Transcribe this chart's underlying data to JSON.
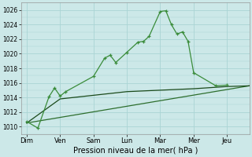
{
  "title": "",
  "xlabel": "Pression niveau de la mer( hPa )",
  "background_color": "#cce8e8",
  "grid_color": "#aad4d4",
  "ylim": [
    1009,
    1027
  ],
  "yticks": [
    1010,
    1012,
    1014,
    1016,
    1018,
    1020,
    1022,
    1024,
    1026
  ],
  "x_labels": [
    "Dim",
    "Ven",
    "Sam",
    "Lun",
    "Mar",
    "Mer",
    "Jeu"
  ],
  "x_positions": [
    0,
    24,
    48,
    72,
    96,
    120,
    144
  ],
  "xlim": [
    -4,
    160
  ],
  "series1_x": [
    0,
    8,
    16,
    20,
    24,
    28,
    48,
    56,
    60,
    64,
    72,
    80,
    84,
    88,
    96,
    100,
    104,
    108,
    112,
    116,
    120,
    136,
    144
  ],
  "series1_y": [
    1010.7,
    1009.8,
    1014.1,
    1015.3,
    1014.2,
    1014.8,
    1016.9,
    1019.4,
    1019.8,
    1018.8,
    1020.2,
    1021.6,
    1021.7,
    1022.4,
    1025.8,
    1025.9,
    1024.0,
    1022.7,
    1023.0,
    1021.7,
    1017.4,
    1015.6,
    1015.7
  ],
  "series2_x": [
    0,
    24,
    48,
    72,
    96,
    120,
    136,
    144,
    160
  ],
  "series2_y": [
    1010.5,
    1013.8,
    1014.3,
    1014.8,
    1015.0,
    1015.2,
    1015.4,
    1015.5,
    1015.6
  ],
  "series3_x": [
    0,
    160
  ],
  "series3_y": [
    1010.5,
    1015.6
  ],
  "series1_color": "#3a8c3a",
  "series2_color": "#1a4a1a",
  "series3_color": "#2d6e2d"
}
